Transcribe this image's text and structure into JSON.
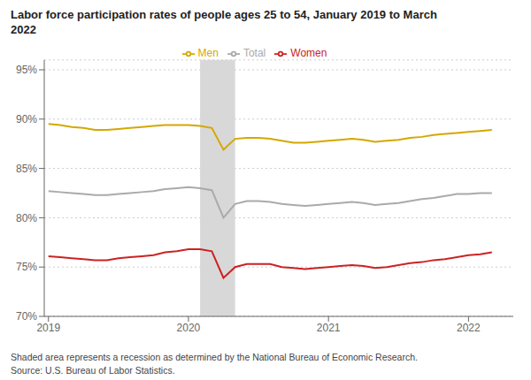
{
  "chart_data": {
    "type": "line",
    "title": "Labor force participation rates of people ages 25 to 54, January 2019 to March\n2022",
    "notes": [
      "Shaded area represents a recession as determined by the National Bureau of Economic Research.",
      "Source: U.S. Bureau of Labor Statistics."
    ],
    "x": [
      2019.0,
      2019.083,
      2019.167,
      2019.25,
      2019.333,
      2019.417,
      2019.5,
      2019.583,
      2019.667,
      2019.75,
      2019.833,
      2019.917,
      2020.0,
      2020.083,
      2020.167,
      2020.25,
      2020.333,
      2020.417,
      2020.5,
      2020.583,
      2020.667,
      2020.75,
      2020.833,
      2020.917,
      2021.0,
      2021.083,
      2021.167,
      2021.25,
      2021.333,
      2021.417,
      2021.5,
      2021.583,
      2021.667,
      2021.75,
      2021.833,
      2021.917,
      2022.0,
      2022.083,
      2022.167
    ],
    "series": [
      {
        "name": "Total",
        "color": "#aaaaaa",
        "values": [
          82.7,
          82.6,
          82.5,
          82.4,
          82.3,
          82.3,
          82.4,
          82.5,
          82.6,
          82.7,
          82.9,
          83.0,
          83.1,
          83.0,
          82.8,
          80.0,
          81.4,
          81.7,
          81.7,
          81.6,
          81.4,
          81.3,
          81.2,
          81.3,
          81.4,
          81.5,
          81.6,
          81.5,
          81.3,
          81.4,
          81.5,
          81.7,
          81.9,
          82.0,
          82.2,
          82.4,
          82.4,
          82.5,
          82.5
        ]
      },
      {
        "name": "Men",
        "color": "#d4a800",
        "values": [
          89.5,
          89.4,
          89.2,
          89.1,
          88.9,
          88.9,
          89.0,
          89.1,
          89.2,
          89.3,
          89.4,
          89.4,
          89.4,
          89.3,
          89.1,
          86.9,
          88.0,
          88.1,
          88.1,
          88.0,
          87.8,
          87.6,
          87.6,
          87.7,
          87.8,
          87.9,
          88.0,
          87.9,
          87.7,
          87.8,
          87.9,
          88.1,
          88.2,
          88.4,
          88.5,
          88.6,
          88.7,
          88.8,
          88.9
        ]
      },
      {
        "name": "Women",
        "color": "#cc2222",
        "values": [
          76.1,
          76.0,
          75.9,
          75.8,
          75.7,
          75.7,
          75.9,
          76.0,
          76.1,
          76.2,
          76.5,
          76.6,
          76.8,
          76.8,
          76.6,
          73.9,
          75.0,
          75.3,
          75.3,
          75.3,
          75.0,
          74.9,
          74.8,
          74.9,
          75.0,
          75.1,
          75.2,
          75.1,
          74.9,
          75.0,
          75.2,
          75.4,
          75.5,
          75.7,
          75.8,
          76.0,
          76.2,
          76.3,
          76.5
        ]
      }
    ],
    "shaded_region": {
      "start": 2020.083,
      "end": 2020.333,
      "color": "#d8d8d8"
    },
    "xlim": [
      2018.97,
      2022.32
    ],
    "xticks": [
      2019,
      2020,
      2021,
      2022
    ],
    "ylim": [
      70,
      96
    ],
    "yticks": [
      {
        "value": 70,
        "label": "70%"
      },
      {
        "value": 75,
        "label": "75%"
      },
      {
        "value": 80,
        "label": "80%"
      },
      {
        "value": 85,
        "label": "85%"
      },
      {
        "value": 90,
        "label": "90%"
      },
      {
        "value": 95,
        "label": "95%"
      }
    ],
    "grid": true,
    "legend": "top"
  }
}
